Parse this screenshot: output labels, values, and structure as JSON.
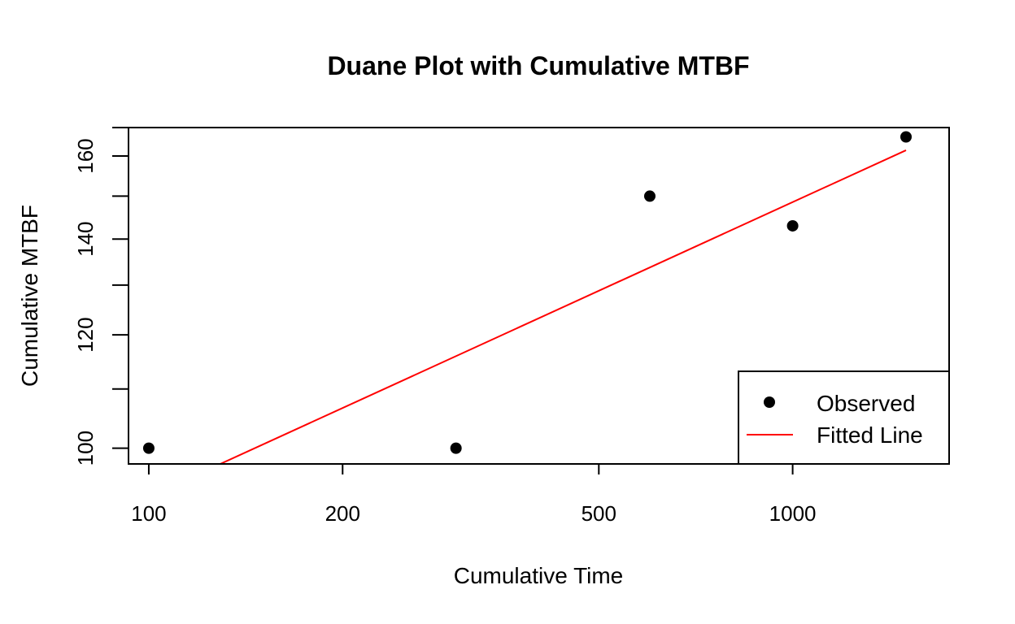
{
  "chart_data": {
    "type": "scatter",
    "title": "Duane Plot with Cumulative MTBF",
    "xlabel": "Cumulative Time",
    "ylabel": "Cumulative MTBF",
    "x_scale": "log",
    "y_scale": "log",
    "xlim": [
      93,
      1750
    ],
    "ylim": [
      97.5,
      167.5
    ],
    "x_ticks": [
      100,
      200,
      500,
      1000
    ],
    "x_tick_labels": [
      "100",
      "200",
      "500",
      "1000"
    ],
    "y_ticks": [
      100,
      110,
      120,
      130,
      140,
      150,
      160,
      167.5
    ],
    "y_tick_labels": [
      "100",
      "",
      "120",
      "",
      "140",
      "",
      "160",
      ""
    ],
    "grid": false,
    "legend_position": "bottom-right",
    "series": [
      {
        "name": "Observed",
        "kind": "points",
        "color": "#000000",
        "x": [
          100,
          300,
          600,
          1000,
          1500
        ],
        "y": [
          100,
          100,
          150,
          143,
          165
        ]
      },
      {
        "name": "Fitted Line",
        "kind": "line",
        "color": "#ff0000",
        "x": [
          100,
          1500
        ],
        "y": [
          92.5,
          161.5
        ]
      }
    ]
  }
}
